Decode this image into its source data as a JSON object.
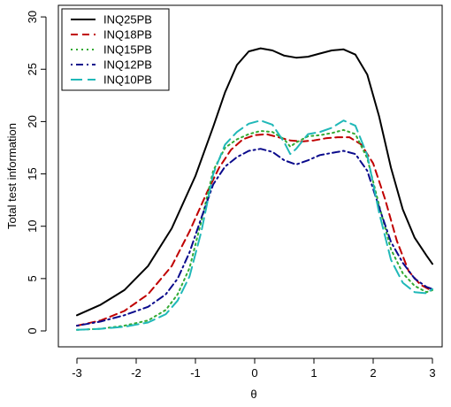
{
  "chart_data": {
    "type": "line",
    "xlabel": "θ",
    "ylabel": "Total test information",
    "xlim": [
      -3,
      3
    ],
    "ylim": [
      0,
      30
    ],
    "x_ticks": [
      -3,
      -2,
      -1,
      0,
      1,
      2,
      3
    ],
    "y_ticks": [
      0,
      5,
      10,
      15,
      20,
      25,
      30
    ],
    "grid": false,
    "legend_position": "top-left",
    "series": [
      {
        "name": "INQ25PB",
        "color": "#000000",
        "dash": "solid",
        "points": [
          [
            -3,
            1.5
          ],
          [
            -2.6,
            2.5
          ],
          [
            -2.2,
            3.9
          ],
          [
            -1.8,
            6.2
          ],
          [
            -1.4,
            9.8
          ],
          [
            -1.0,
            14.8
          ],
          [
            -0.7,
            19.5
          ],
          [
            -0.5,
            22.8
          ],
          [
            -0.3,
            25.4
          ],
          [
            -0.1,
            26.7
          ],
          [
            0.1,
            27.0
          ],
          [
            0.3,
            26.8
          ],
          [
            0.5,
            26.3
          ],
          [
            0.7,
            26.1
          ],
          [
            0.9,
            26.2
          ],
          [
            1.1,
            26.5
          ],
          [
            1.3,
            26.8
          ],
          [
            1.5,
            26.9
          ],
          [
            1.7,
            26.4
          ],
          [
            1.9,
            24.5
          ],
          [
            2.1,
            20.5
          ],
          [
            2.3,
            15.6
          ],
          [
            2.5,
            11.6
          ],
          [
            2.7,
            8.9
          ],
          [
            2.9,
            7.2
          ],
          [
            3.0,
            6.4
          ]
        ]
      },
      {
        "name": "INQ18PB",
        "color": "#c00000",
        "dash": "dashed",
        "points": [
          [
            -3,
            0.5
          ],
          [
            -2.6,
            1.0
          ],
          [
            -2.2,
            1.9
          ],
          [
            -1.8,
            3.5
          ],
          [
            -1.4,
            6.2
          ],
          [
            -1.1,
            9.5
          ],
          [
            -0.8,
            13.3
          ],
          [
            -0.6,
            15.6
          ],
          [
            -0.4,
            17.3
          ],
          [
            -0.2,
            18.3
          ],
          [
            0.0,
            18.7
          ],
          [
            0.2,
            18.8
          ],
          [
            0.4,
            18.5
          ],
          [
            0.6,
            18.2
          ],
          [
            0.8,
            18.1
          ],
          [
            1.0,
            18.2
          ],
          [
            1.2,
            18.4
          ],
          [
            1.4,
            18.5
          ],
          [
            1.6,
            18.5
          ],
          [
            1.8,
            17.8
          ],
          [
            2.0,
            16.0
          ],
          [
            2.2,
            12.6
          ],
          [
            2.4,
            8.6
          ],
          [
            2.6,
            5.7
          ],
          [
            2.8,
            4.4
          ],
          [
            3.0,
            3.8
          ]
        ]
      },
      {
        "name": "INQ15PB",
        "color": "#33aa33",
        "dash": "dotted",
        "points": [
          [
            -3,
            0.1
          ],
          [
            -2.6,
            0.2
          ],
          [
            -2.2,
            0.5
          ],
          [
            -1.8,
            1.0
          ],
          [
            -1.5,
            2.0
          ],
          [
            -1.3,
            3.5
          ],
          [
            -1.1,
            6.0
          ],
          [
            -0.9,
            10.5
          ],
          [
            -0.7,
            15.3
          ],
          [
            -0.5,
            17.5
          ],
          [
            -0.3,
            18.3
          ],
          [
            -0.1,
            18.8
          ],
          [
            0.1,
            19.1
          ],
          [
            0.3,
            19.0
          ],
          [
            0.5,
            18.3
          ],
          [
            0.6,
            17.6
          ],
          [
            0.7,
            18.0
          ],
          [
            0.9,
            18.6
          ],
          [
            1.1,
            18.7
          ],
          [
            1.3,
            18.9
          ],
          [
            1.5,
            19.2
          ],
          [
            1.7,
            18.8
          ],
          [
            1.9,
            16.5
          ],
          [
            2.1,
            12.0
          ],
          [
            2.3,
            7.8
          ],
          [
            2.5,
            5.5
          ],
          [
            2.7,
            4.3
          ],
          [
            2.9,
            3.7
          ],
          [
            3.0,
            3.9
          ]
        ]
      },
      {
        "name": "INQ12PB",
        "color": "#0a0a8c",
        "dash": "dotdash",
        "points": [
          [
            -3,
            0.5
          ],
          [
            -2.6,
            0.9
          ],
          [
            -2.2,
            1.5
          ],
          [
            -1.8,
            2.3
          ],
          [
            -1.5,
            3.5
          ],
          [
            -1.3,
            5.0
          ],
          [
            -1.1,
            7.5
          ],
          [
            -0.9,
            10.8
          ],
          [
            -0.7,
            14.0
          ],
          [
            -0.5,
            15.7
          ],
          [
            -0.3,
            16.6
          ],
          [
            -0.1,
            17.2
          ],
          [
            0.1,
            17.4
          ],
          [
            0.3,
            17.1
          ],
          [
            0.5,
            16.3
          ],
          [
            0.7,
            15.9
          ],
          [
            0.9,
            16.3
          ],
          [
            1.1,
            16.8
          ],
          [
            1.3,
            17.0
          ],
          [
            1.5,
            17.2
          ],
          [
            1.7,
            16.9
          ],
          [
            1.9,
            15.3
          ],
          [
            2.1,
            11.8
          ],
          [
            2.3,
            8.5
          ],
          [
            2.5,
            6.5
          ],
          [
            2.7,
            5.0
          ],
          [
            2.9,
            4.2
          ],
          [
            3.0,
            4.0
          ]
        ]
      },
      {
        "name": "INQ10PB",
        "color": "#20b8b8",
        "dash": "longdash",
        "points": [
          [
            -3,
            0.1
          ],
          [
            -2.6,
            0.2
          ],
          [
            -2.2,
            0.4
          ],
          [
            -1.8,
            0.8
          ],
          [
            -1.5,
            1.6
          ],
          [
            -1.3,
            2.9
          ],
          [
            -1.1,
            5.2
          ],
          [
            -0.9,
            9.5
          ],
          [
            -0.7,
            15.0
          ],
          [
            -0.5,
            17.8
          ],
          [
            -0.3,
            19.0
          ],
          [
            -0.1,
            19.8
          ],
          [
            0.1,
            20.1
          ],
          [
            0.3,
            19.7
          ],
          [
            0.5,
            18.0
          ],
          [
            0.6,
            16.9
          ],
          [
            0.7,
            17.4
          ],
          [
            0.9,
            18.8
          ],
          [
            1.1,
            19.0
          ],
          [
            1.3,
            19.4
          ],
          [
            1.5,
            20.1
          ],
          [
            1.7,
            19.6
          ],
          [
            1.9,
            16.8
          ],
          [
            2.1,
            11.3
          ],
          [
            2.3,
            6.8
          ],
          [
            2.5,
            4.6
          ],
          [
            2.7,
            3.7
          ],
          [
            2.9,
            3.6
          ],
          [
            3.0,
            4.0
          ]
        ]
      }
    ]
  }
}
